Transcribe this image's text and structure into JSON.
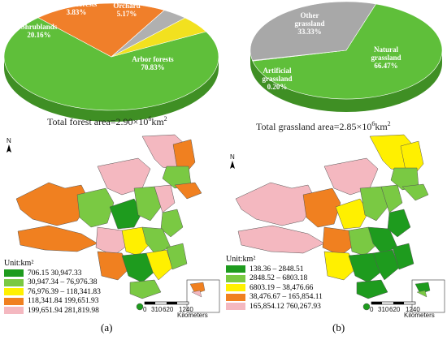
{
  "panel_a": {
    "label": "(a)",
    "pie": {
      "caption_text": "Total forest area=2.90×10",
      "caption_exp": "6",
      "caption_unit": "km",
      "caption_unit_exp": "2",
      "slices": [
        {
          "line1": "Arbor forests",
          "line2": "70.83%",
          "value": 70.83,
          "color": "#5fbf3a"
        },
        {
          "line1": "Shrublands",
          "line2": "20.16%",
          "value": 20.16,
          "color": "#f07f2a"
        },
        {
          "line1": "Other forests",
          "line2": "3.83%",
          "value": 3.83,
          "color": "#b0b0b0"
        },
        {
          "line1": "Orchard",
          "line2": "5.17%",
          "value": 5.17,
          "color": "#f2e11f"
        }
      ]
    },
    "legend": {
      "title": "Unit:km²",
      "items": [
        {
          "range": "706.15     30,947.33",
          "color": "#1e9b1e"
        },
        {
          "range": "30,947.34 – 76,976.38",
          "color": "#7ac943"
        },
        {
          "range": "76,976.39 – 118,341.83",
          "color": "#fff000"
        },
        {
          "range": "118,341.84     199,651.93",
          "color": "#f08020"
        },
        {
          "range": "199,651.94     281,819.98",
          "color": "#f4b8c0"
        }
      ]
    }
  },
  "panel_b": {
    "label": "(b)",
    "pie": {
      "caption_text": "Total grassland  area=2.85×10",
      "caption_exp": "6",
      "caption_unit": "km",
      "caption_unit_exp": "2",
      "slices": [
        {
          "line1": "Natural",
          "line2": "grassland",
          "line3": "66.47%",
          "value": 66.47,
          "color": "#5fbf3a"
        },
        {
          "line1": "Artificial",
          "line2": "grassland",
          "line3": "0.20%",
          "value": 0.2,
          "color": "#8a8a8a"
        },
        {
          "line1": "Other",
          "line2": "grassland",
          "line3": "33.33%",
          "value": 33.33,
          "color": "#a8a8a8"
        }
      ]
    },
    "legend": {
      "title": "Unit:km²",
      "items": [
        {
          "range": "138.36  – 2848.51",
          "color": "#1e9b1e"
        },
        {
          "range": "2848.52 –  6803.18",
          "color": "#7ac943"
        },
        {
          "range": "6803.19 – 38,476.66",
          "color": "#fff000"
        },
        {
          "range": "38,476.67 – 165,854.11",
          "color": "#f08020"
        },
        {
          "range": "165,854.12     760,267.93",
          "color": "#f4b8c0"
        }
      ]
    }
  },
  "map": {
    "north": "N",
    "scale_ticks": [
      "0",
      "310",
      "620",
      "1240"
    ],
    "scale_unit": "Kilometers"
  }
}
